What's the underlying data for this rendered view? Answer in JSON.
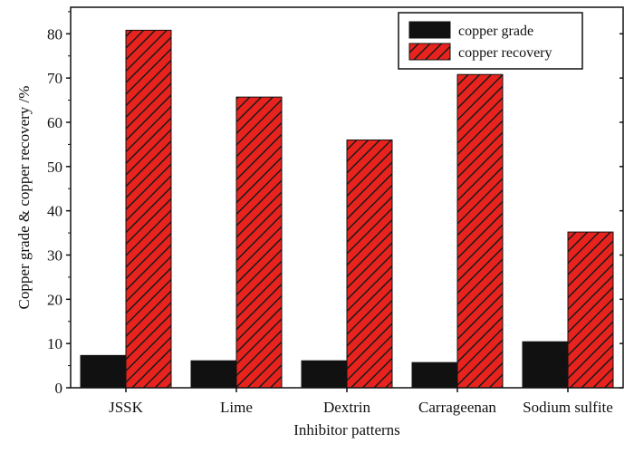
{
  "chart_data": {
    "type": "bar",
    "title": "",
    "xlabel": "Inhibitor patterns",
    "ylabel": "Copper grade & copper recovery /%",
    "ylim": [
      0,
      86
    ],
    "yticks": [
      0,
      10,
      20,
      30,
      40,
      50,
      60,
      70,
      80
    ],
    "grid": false,
    "legend_position": "top-right",
    "categories": [
      "JSSK",
      "Lime",
      "Dextrin",
      "Carrageenan",
      "Sodium sulfite"
    ],
    "series": [
      {
        "name": "copper grade",
        "values": [
          7.3,
          6.1,
          6.1,
          5.7,
          10.4
        ],
        "color": "#111111",
        "pattern": "solid"
      },
      {
        "name": "copper recovery",
        "values": [
          80.8,
          65.7,
          56.0,
          70.8,
          35.2
        ],
        "color": "#e8231e",
        "pattern": "diagonal-hatch"
      }
    ]
  }
}
